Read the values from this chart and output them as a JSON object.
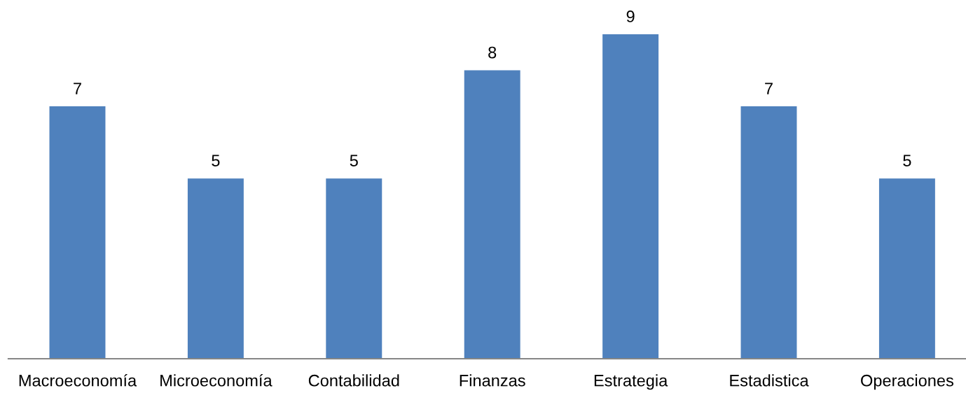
{
  "chart_data": {
    "type": "bar",
    "categories": [
      "Macroeconomía",
      "Microeconomía",
      "Contabilidad",
      "Finanzas",
      "Estrategia",
      "Estadistica",
      "Operaciones"
    ],
    "values": [
      7,
      5,
      5,
      8,
      9,
      7,
      5
    ],
    "color": "#4f81bd",
    "data_labels": true,
    "tick_labels": "x"
  }
}
